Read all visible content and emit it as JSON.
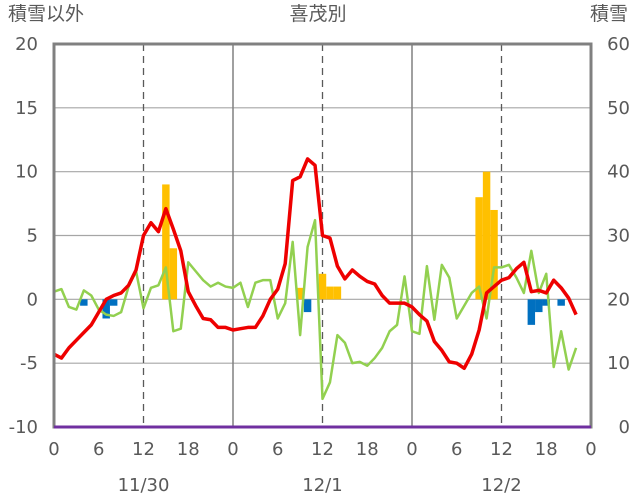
{
  "chart_data": {
    "type": "bar+line",
    "title": "喜茂別",
    "left_axis_label": "積雪以外",
    "right_axis_label": "積雪",
    "left_ylim": [
      -10,
      20
    ],
    "left_ticks": [
      20,
      15,
      10,
      5,
      0,
      -5,
      -10
    ],
    "right_ylim": [
      0,
      60
    ],
    "right_ticks": [
      60,
      50,
      40,
      30,
      20,
      10,
      0
    ],
    "xlim": [
      0,
      72
    ],
    "x_tick_values": [
      0,
      6,
      12,
      18,
      24,
      30,
      36,
      42,
      48,
      54,
      60,
      66,
      72
    ],
    "x_tick_labels": [
      "0",
      "6",
      "12",
      "18",
      "0",
      "6",
      "12",
      "18",
      "0",
      "6",
      "12",
      "18",
      "0"
    ],
    "day_labels": [
      {
        "x": 12,
        "label": "11/30"
      },
      {
        "x": 36,
        "label": "12/1"
      },
      {
        "x": 60,
        "label": "12/2"
      }
    ],
    "grid": {
      "solid_x": [
        24,
        48
      ],
      "dashed_x": [
        12,
        36,
        60
      ],
      "horizontal": [
        -10,
        -5,
        0,
        5,
        10,
        15,
        20
      ]
    },
    "colors": {
      "red_line": "#ee0000",
      "green_line": "#92d050",
      "orange_bar": "#ffc000",
      "blue_bar": "#0070c0",
      "baseline": "#7030a0",
      "frame": "#808080"
    },
    "red_line": [
      [
        0,
        -4.3
      ],
      [
        1,
        -4.6
      ],
      [
        2,
        -3.8
      ],
      [
        3,
        -3.2
      ],
      [
        4,
        -2.6
      ],
      [
        5,
        -2.0
      ],
      [
        6,
        -1.0
      ],
      [
        7,
        0.0
      ],
      [
        8,
        0.3
      ],
      [
        9,
        0.5
      ],
      [
        10,
        1.1
      ],
      [
        11,
        2.3
      ],
      [
        12,
        5.0
      ],
      [
        13,
        6.0
      ],
      [
        14,
        5.3
      ],
      [
        15,
        7.1
      ],
      [
        16,
        5.5
      ],
      [
        17,
        3.8
      ],
      [
        18,
        0.6
      ],
      [
        19,
        -0.5
      ],
      [
        20,
        -1.5
      ],
      [
        21,
        -1.6
      ],
      [
        22,
        -2.2
      ],
      [
        23,
        -2.2
      ],
      [
        24,
        -2.4
      ],
      [
        25,
        -2.3
      ],
      [
        26,
        -2.2
      ],
      [
        27,
        -2.2
      ],
      [
        28,
        -1.3
      ],
      [
        29,
        0.0
      ],
      [
        30,
        0.8
      ],
      [
        31,
        2.8
      ],
      [
        32,
        9.3
      ],
      [
        33,
        9.6
      ],
      [
        34,
        11.0
      ],
      [
        35,
        10.5
      ],
      [
        36,
        5.0
      ],
      [
        37,
        4.8
      ],
      [
        38,
        2.6
      ],
      [
        39,
        1.6
      ],
      [
        40,
        2.3
      ],
      [
        41,
        1.8
      ],
      [
        42,
        1.4
      ],
      [
        43,
        1.2
      ],
      [
        44,
        0.3
      ],
      [
        45,
        -0.3
      ],
      [
        46,
        -0.3
      ],
      [
        47,
        -0.3
      ],
      [
        48,
        -0.6
      ],
      [
        49,
        -1.2
      ],
      [
        50,
        -1.7
      ],
      [
        51,
        -3.3
      ],
      [
        52,
        -4.0
      ],
      [
        53,
        -4.9
      ],
      [
        54,
        -5.0
      ],
      [
        55,
        -5.4
      ],
      [
        56,
        -4.3
      ],
      [
        57,
        -2.4
      ],
      [
        58,
        0.5
      ],
      [
        59,
        1.0
      ],
      [
        60,
        1.5
      ],
      [
        61,
        1.7
      ],
      [
        62,
        2.4
      ],
      [
        63,
        2.9
      ],
      [
        64,
        0.6
      ],
      [
        65,
        0.7
      ],
      [
        66,
        0.5
      ],
      [
        67,
        1.5
      ],
      [
        68,
        0.9
      ],
      [
        69,
        0.1
      ],
      [
        70,
        -1.2
      ]
    ],
    "green_line": [
      [
        0,
        0.6
      ],
      [
        1,
        0.8
      ],
      [
        2,
        -0.6
      ],
      [
        3,
        -0.8
      ],
      [
        4,
        0.7
      ],
      [
        5,
        0.3
      ],
      [
        6,
        -0.8
      ],
      [
        7,
        -1.2
      ],
      [
        8,
        -1.3
      ],
      [
        9,
        -1.0
      ],
      [
        10,
        1.0
      ],
      [
        11,
        2.2
      ],
      [
        12,
        -0.7
      ],
      [
        13,
        0.9
      ],
      [
        14,
        1.1
      ],
      [
        15,
        2.5
      ],
      [
        16,
        -2.5
      ],
      [
        17,
        -2.3
      ],
      [
        18,
        2.9
      ],
      [
        19,
        2.2
      ],
      [
        20,
        1.5
      ],
      [
        21,
        1.0
      ],
      [
        22,
        1.3
      ],
      [
        23,
        1.0
      ],
      [
        24,
        0.9
      ],
      [
        25,
        1.3
      ],
      [
        26,
        -0.6
      ],
      [
        27,
        1.3
      ],
      [
        28,
        1.5
      ],
      [
        29,
        1.5
      ],
      [
        30,
        -1.5
      ],
      [
        31,
        -0.3
      ],
      [
        32,
        4.5
      ],
      [
        33,
        -2.8
      ],
      [
        34,
        4.1
      ],
      [
        35,
        6.2
      ],
      [
        36,
        -7.8
      ],
      [
        37,
        -6.5
      ],
      [
        38,
        -2.8
      ],
      [
        39,
        -3.4
      ],
      [
        40,
        -5.0
      ],
      [
        41,
        -4.9
      ],
      [
        42,
        -5.2
      ],
      [
        43,
        -4.6
      ],
      [
        44,
        -3.8
      ],
      [
        45,
        -2.5
      ],
      [
        46,
        -2.0
      ],
      [
        47,
        1.8
      ],
      [
        48,
        -2.5
      ],
      [
        49,
        -2.7
      ],
      [
        50,
        2.6
      ],
      [
        51,
        -1.6
      ],
      [
        52,
        2.7
      ],
      [
        53,
        1.7
      ],
      [
        54,
        -1.5
      ],
      [
        55,
        -0.5
      ],
      [
        56,
        0.5
      ],
      [
        57,
        1.0
      ],
      [
        58,
        -1.5
      ],
      [
        59,
        2.5
      ],
      [
        60,
        2.5
      ],
      [
        61,
        2.7
      ],
      [
        62,
        1.7
      ],
      [
        63,
        0.5
      ],
      [
        64,
        3.8
      ],
      [
        65,
        0.5
      ],
      [
        66,
        2.0
      ],
      [
        67,
        -5.3
      ],
      [
        68,
        -2.5
      ],
      [
        69,
        -5.5
      ],
      [
        70,
        -3.8
      ]
    ],
    "orange_bars": [
      {
        "x": 15,
        "value": 9.0
      },
      {
        "x": 16,
        "value": 4.0
      },
      {
        "x": 33,
        "value": 0.9
      },
      {
        "x": 36,
        "value": 2.0
      },
      {
        "x": 37,
        "value": 1.0
      },
      {
        "x": 38,
        "value": 1.0
      },
      {
        "x": 57,
        "value": 8.0
      },
      {
        "x": 58,
        "value": 10.0
      },
      {
        "x": 59,
        "value": 7.0
      }
    ],
    "blue_bars": [
      {
        "x": 4,
        "value": -0.5
      },
      {
        "x": 7,
        "value": -1.5
      },
      {
        "x": 8,
        "value": -0.5
      },
      {
        "x": 34,
        "value": -1.0
      },
      {
        "x": 64,
        "value": -2.0
      },
      {
        "x": 65,
        "value": -1.0
      },
      {
        "x": 66,
        "value": -0.5
      },
      {
        "x": 68,
        "value": -0.5
      }
    ]
  }
}
